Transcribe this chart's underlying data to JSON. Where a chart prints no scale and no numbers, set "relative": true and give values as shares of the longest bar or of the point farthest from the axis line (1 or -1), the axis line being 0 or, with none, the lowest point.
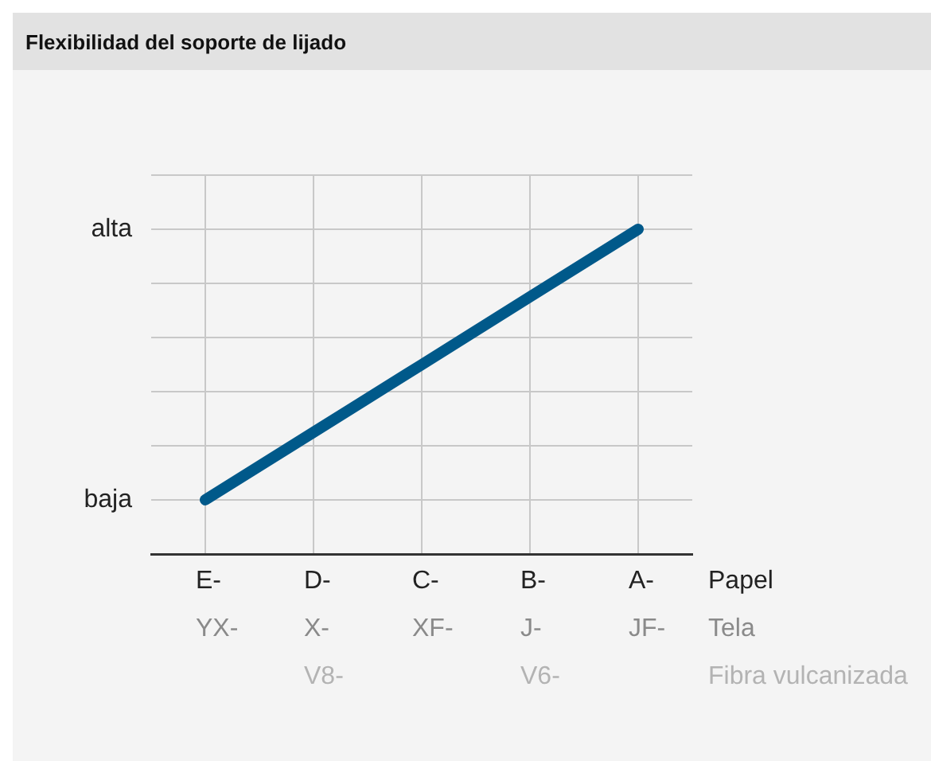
{
  "chart_data": {
    "type": "line",
    "title": "Flexibilidad del soporte de lijado",
    "categories": [
      "E-\nYX-",
      "D-\nX-\nV8-",
      "C-\nXF-",
      "B-\nJ-\nV6-",
      "A-\nJF-"
    ],
    "series": [
      {
        "color": "#00598a",
        "values": [
          0.167,
          0.375,
          0.583,
          0.792,
          1
        ]
      }
    ],
    "relative": true,
    "grid": true,
    "legend": false,
    "marker": "none",
    "line_style": "solid",
    "annotations": [
      "baja",
      "alta",
      "Papel",
      "Tela",
      "Fibra vulcanizada"
    ]
  }
}
